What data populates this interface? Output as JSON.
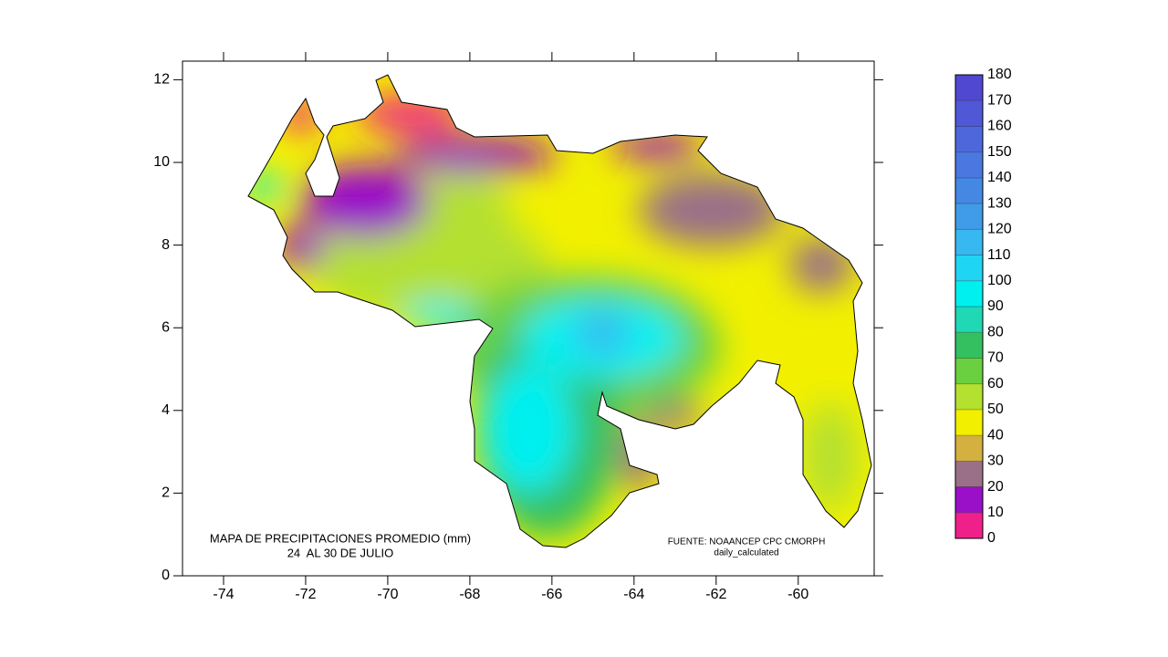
{
  "chart_data": {
    "type": "contour-map",
    "xlim": [
      -75,
      -58.15
    ],
    "ylim": [
      0,
      12.45
    ],
    "xticks": [
      -74,
      -72,
      -70,
      -68,
      -66,
      -64,
      -62,
      -60
    ],
    "yticks": [
      0,
      2,
      4,
      6,
      8,
      10,
      12
    ],
    "annotations": [
      "MAPA DE PRECIPITACIONES PROMEDIO (mm)",
      "24  AL 30 DE JULIO",
      "FUENTE: NOAANCEP CPC CMORPH",
      "daily_calculated"
    ],
    "colorbar": {
      "levels": [
        0,
        10,
        20,
        30,
        40,
        50,
        60,
        70,
        80,
        90,
        100,
        110,
        120,
        130,
        140,
        150,
        160,
        170,
        180
      ],
      "colors": [
        "#f0208a",
        "#9a10c8",
        "#9a7088",
        "#d4b040",
        "#f2f000",
        "#b4e030",
        "#6ad040",
        "#34c060",
        "#20d8b4",
        "#00f0f0",
        "#20d4f4",
        "#38b8f0",
        "#409ce8",
        "#4488e4",
        "#4a78e0",
        "#4e68dc",
        "#5058d8",
        "#5048d0"
      ]
    }
  }
}
